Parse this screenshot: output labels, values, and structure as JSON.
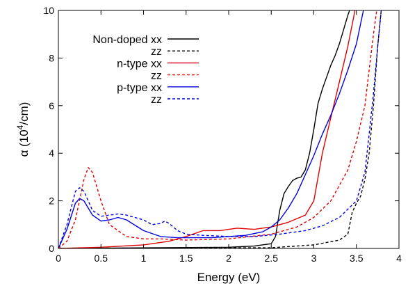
{
  "chart_data": {
    "type": "line",
    "title": "",
    "xlabel": "Energy (eV)",
    "ylabel_prefix": "α (10",
    "ylabel_sup": "4",
    "ylabel_suffix": "/cm)",
    "xlim": [
      0,
      4
    ],
    "ylim": [
      0,
      10
    ],
    "xticks": [
      0,
      0.5,
      1,
      1.5,
      2,
      2.5,
      3,
      3.5,
      4
    ],
    "xtick_labels": [
      "0",
      "0.5",
      "1",
      "1.5",
      "2",
      "2.5",
      "3",
      "3.5",
      "4"
    ],
    "yticks": [
      0,
      2,
      4,
      6,
      8,
      10
    ],
    "ytick_labels": [
      "0",
      "2",
      "4",
      "6",
      "8",
      "10"
    ],
    "grid": false,
    "legend_position": "top-left",
    "series": [
      {
        "name": "Non-doped xx",
        "color": "#000000",
        "dash": "solid",
        "x": [
          0,
          2.0,
          2.3,
          2.5,
          2.55,
          2.6,
          2.65,
          2.7,
          2.75,
          2.8,
          2.85,
          2.9,
          2.95,
          3.0,
          3.05,
          3.1,
          3.15,
          3.2,
          3.25,
          3.3,
          3.35,
          3.4,
          3.45
        ],
        "y": [
          0,
          0.05,
          0.1,
          0.2,
          0.5,
          1.6,
          2.3,
          2.6,
          2.85,
          2.95,
          3.0,
          3.3,
          4.0,
          5.0,
          6.1,
          6.7,
          7.2,
          7.7,
          8.1,
          8.6,
          9.2,
          9.8,
          10.3
        ]
      },
      {
        "name": "zz",
        "color": "#000000",
        "dash": "dashed",
        "x": [
          0,
          2.5,
          3.0,
          3.3,
          3.4,
          3.45,
          3.5,
          3.55,
          3.6,
          3.65,
          3.7,
          3.75,
          3.8
        ],
        "y": [
          0,
          0.03,
          0.15,
          0.35,
          0.6,
          1.5,
          1.9,
          2.2,
          2.9,
          4.0,
          6.0,
          8.5,
          10.3
        ]
      },
      {
        "name": "n-type xx",
        "color": "#e00000",
        "dash": "solid",
        "x": [
          0,
          0.5,
          1.0,
          1.3,
          1.5,
          1.7,
          1.9,
          2.0,
          2.1,
          2.3,
          2.5,
          2.7,
          2.9,
          3.0,
          3.1,
          3.2,
          3.3,
          3.4,
          3.5
        ],
        "y": [
          0,
          0.05,
          0.15,
          0.3,
          0.5,
          0.75,
          0.75,
          0.8,
          0.85,
          0.8,
          0.9,
          1.1,
          1.4,
          2.0,
          4.0,
          5.5,
          7.0,
          8.5,
          10.3
        ]
      },
      {
        "name": "zz",
        "color": "#e00000",
        "dash": "dashed",
        "x": [
          0,
          0.1,
          0.2,
          0.3,
          0.35,
          0.4,
          0.5,
          0.6,
          0.8,
          1.0,
          1.2,
          1.5,
          2.0,
          2.5,
          2.8,
          3.0,
          3.2,
          3.4,
          3.5,
          3.6,
          3.65,
          3.7,
          3.75
        ],
        "y": [
          0,
          0.3,
          1.2,
          2.9,
          3.4,
          3.2,
          2.0,
          1.0,
          0.5,
          0.4,
          0.4,
          0.35,
          0.4,
          0.6,
          0.9,
          1.3,
          2.0,
          3.3,
          4.5,
          6.0,
          7.5,
          9.0,
          10.3
        ]
      },
      {
        "name": "p-type xx",
        "color": "#0000e0",
        "dash": "solid",
        "x": [
          0,
          0.1,
          0.2,
          0.25,
          0.3,
          0.4,
          0.5,
          0.6,
          0.7,
          0.8,
          1.0,
          1.2,
          1.4,
          1.6,
          1.8,
          2.0,
          2.2,
          2.4,
          2.5,
          2.6,
          2.7,
          2.8,
          2.9,
          3.0,
          3.1,
          3.2,
          3.3,
          3.4,
          3.5,
          3.6
        ],
        "y": [
          0,
          0.8,
          1.9,
          2.1,
          2.0,
          1.4,
          1.15,
          1.2,
          1.3,
          1.2,
          0.75,
          0.5,
          0.45,
          0.45,
          0.45,
          0.5,
          0.55,
          0.7,
          0.9,
          1.2,
          1.7,
          2.3,
          3.1,
          3.9,
          4.8,
          5.6,
          6.5,
          7.5,
          8.6,
          10.3
        ]
      },
      {
        "name": "zz",
        "color": "#0000e0",
        "dash": "dashed",
        "x": [
          0,
          0.1,
          0.2,
          0.25,
          0.3,
          0.4,
          0.5,
          0.6,
          0.7,
          0.8,
          1.0,
          1.1,
          1.2,
          1.25,
          1.3,
          1.4,
          1.5,
          1.7,
          2.0,
          2.3,
          2.6,
          2.9,
          3.1,
          3.3,
          3.5,
          3.6,
          3.65,
          3.7,
          3.75,
          3.8
        ],
        "y": [
          0,
          1.0,
          2.4,
          2.55,
          2.4,
          1.6,
          1.35,
          1.4,
          1.45,
          1.4,
          1.2,
          1.0,
          1.05,
          1.15,
          1.05,
          0.75,
          0.6,
          0.55,
          0.5,
          0.5,
          0.6,
          0.75,
          0.95,
          1.3,
          2.0,
          3.2,
          4.8,
          6.5,
          8.5,
          10.3
        ]
      }
    ]
  }
}
